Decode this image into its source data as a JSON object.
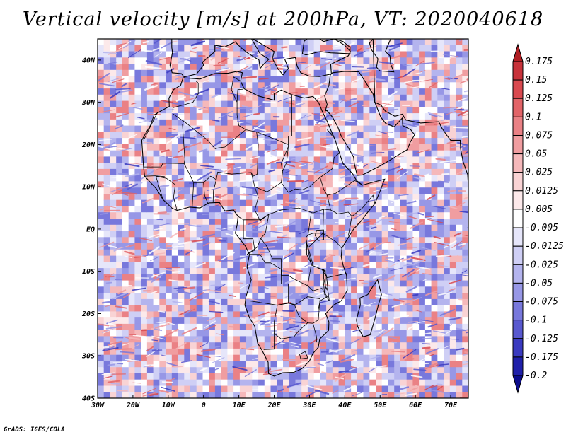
{
  "title": "Vertical velocity [m/s] at 200hPa, VT: 2020040618",
  "credit": "GrADS: IGES/COLA",
  "map": {
    "lon_range": [
      -30,
      75
    ],
    "lat_range": [
      -40,
      45
    ],
    "lon_ticks": [
      {
        "value": -30,
        "label": "30W"
      },
      {
        "value": -20,
        "label": "20W"
      },
      {
        "value": -10,
        "label": "10W"
      },
      {
        "value": 0,
        "label": "0"
      },
      {
        "value": 10,
        "label": "10E"
      },
      {
        "value": 20,
        "label": "20E"
      },
      {
        "value": 30,
        "label": "30E"
      },
      {
        "value": 40,
        "label": "40E"
      },
      {
        "value": 50,
        "label": "50E"
      },
      {
        "value": 60,
        "label": "60E"
      },
      {
        "value": 70,
        "label": "70E"
      }
    ],
    "lat_ticks": [
      {
        "value": 40,
        "label": "40N"
      },
      {
        "value": 30,
        "label": "30N"
      },
      {
        "value": 20,
        "label": "20N"
      },
      {
        "value": 10,
        "label": "10N"
      },
      {
        "value": 0,
        "label": "EQ"
      },
      {
        "value": -10,
        "label": "10S"
      },
      {
        "value": -20,
        "label": "20S"
      },
      {
        "value": -30,
        "label": "30S"
      },
      {
        "value": -40,
        "label": "40S"
      }
    ]
  },
  "colorbar": {
    "labels": [
      "0.175",
      "0.15",
      "0.125",
      "0.1",
      "0.075",
      "0.05",
      "0.025",
      "0.0125",
      "0.005",
      "-0.005",
      "-0.0125",
      "-0.025",
      "-0.05",
      "-0.075",
      "-0.1",
      "-0.125",
      "-0.175",
      "-0.2"
    ],
    "colors": [
      "#b01e23",
      "#c8323a",
      "#d9494f",
      "#e26468",
      "#ea8185",
      "#f09da0",
      "#f5b8ba",
      "#f9d3d4",
      "#fce9ea",
      "#ffffff",
      "#e6e6fa",
      "#cfcff5",
      "#b4b4ee",
      "#9797e6",
      "#7878dc",
      "#5858cf",
      "#3a3ac0",
      "#2020aa",
      "#0c0c8c"
    ]
  }
}
